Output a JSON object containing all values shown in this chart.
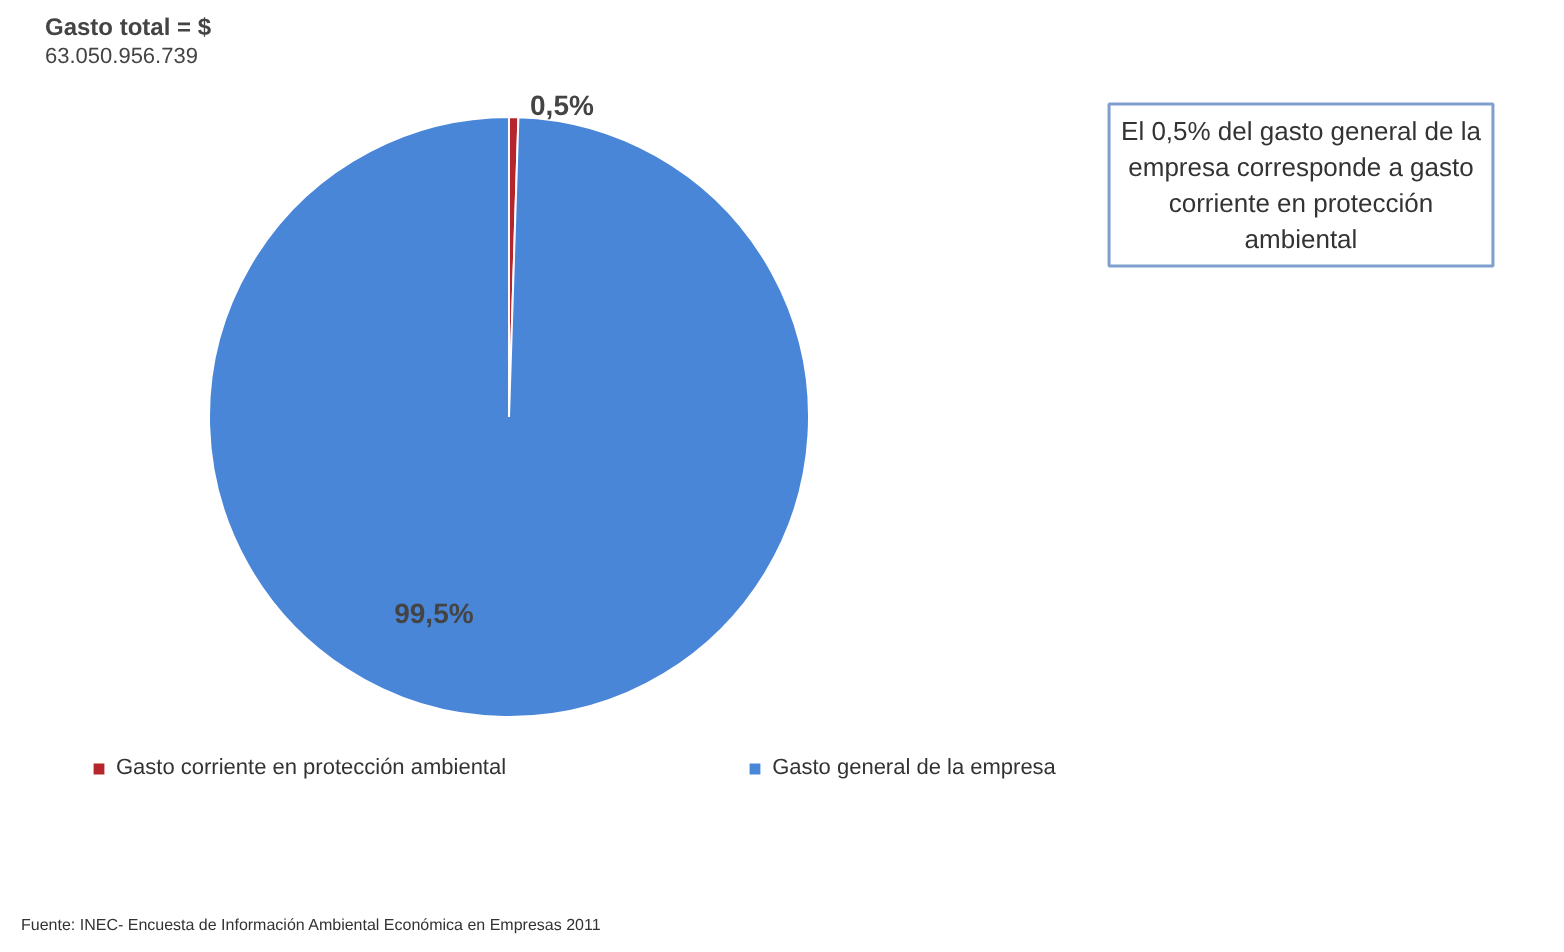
{
  "chart_data": {
    "type": "pie",
    "title": "Gasto total = $",
    "subtitle": "63.050.956.739",
    "categories": [
      "Gasto corriente en protección ambiental",
      "Gasto general de la empresa"
    ],
    "values": [
      0.5,
      99.5
    ],
    "colors": [
      "#b5252b",
      "#4a86d8"
    ],
    "value_labels": [
      "0,5%",
      "99,5%"
    ],
    "legend": "bottom",
    "annotations": [
      "El 0,5% del gasto general de la\nempresa corresponde a gasto\ncorriente en protección\nambiental",
      "Fuente: INEC- Encuesta de Información Ambiental Económica en Empresas 2011"
    ]
  }
}
